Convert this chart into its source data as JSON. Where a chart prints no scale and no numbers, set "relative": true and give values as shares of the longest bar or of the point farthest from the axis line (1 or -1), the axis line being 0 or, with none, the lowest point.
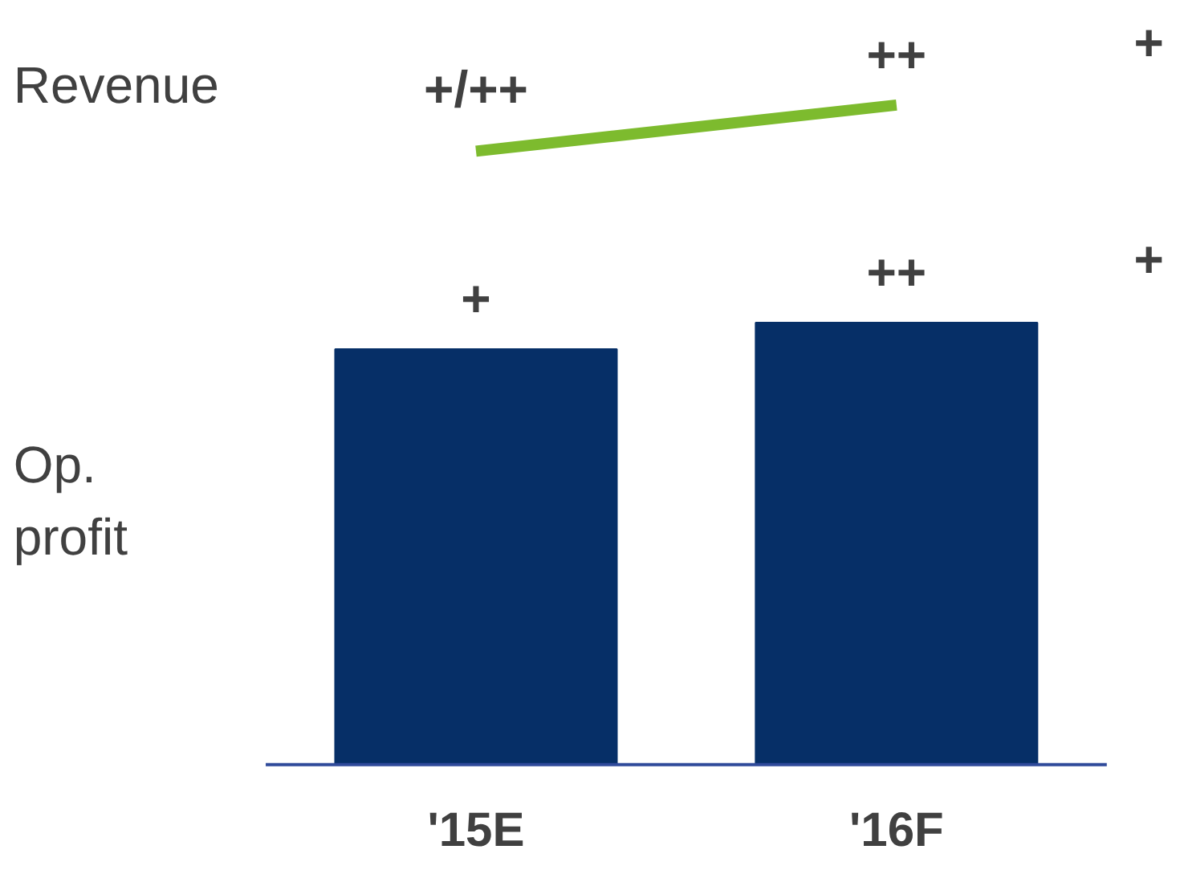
{
  "chart_data": {
    "type": "bar",
    "relative": true,
    "categories": [
      "'15E",
      "'16F"
    ],
    "series": [
      {
        "color": "#062f67",
        "values": [
          0.63,
          0.67
        ]
      },
      {
        "type": "line",
        "color": "#7dbb2e",
        "values": [
          0.93,
          1
        ]
      }
    ],
    "annotations": [
      "Revenue",
      "Op. profit",
      {
        "text": "+/++",
        "x": "'15E",
        "y": 0.93
      },
      {
        "text": "++",
        "x": "'16F",
        "y": 1
      },
      {
        "text": "+",
        "x": "'15E",
        "y": 0.63
      },
      {
        "text": "++",
        "x": "'16F",
        "y": 0.67
      },
      "+",
      "+"
    ]
  }
}
